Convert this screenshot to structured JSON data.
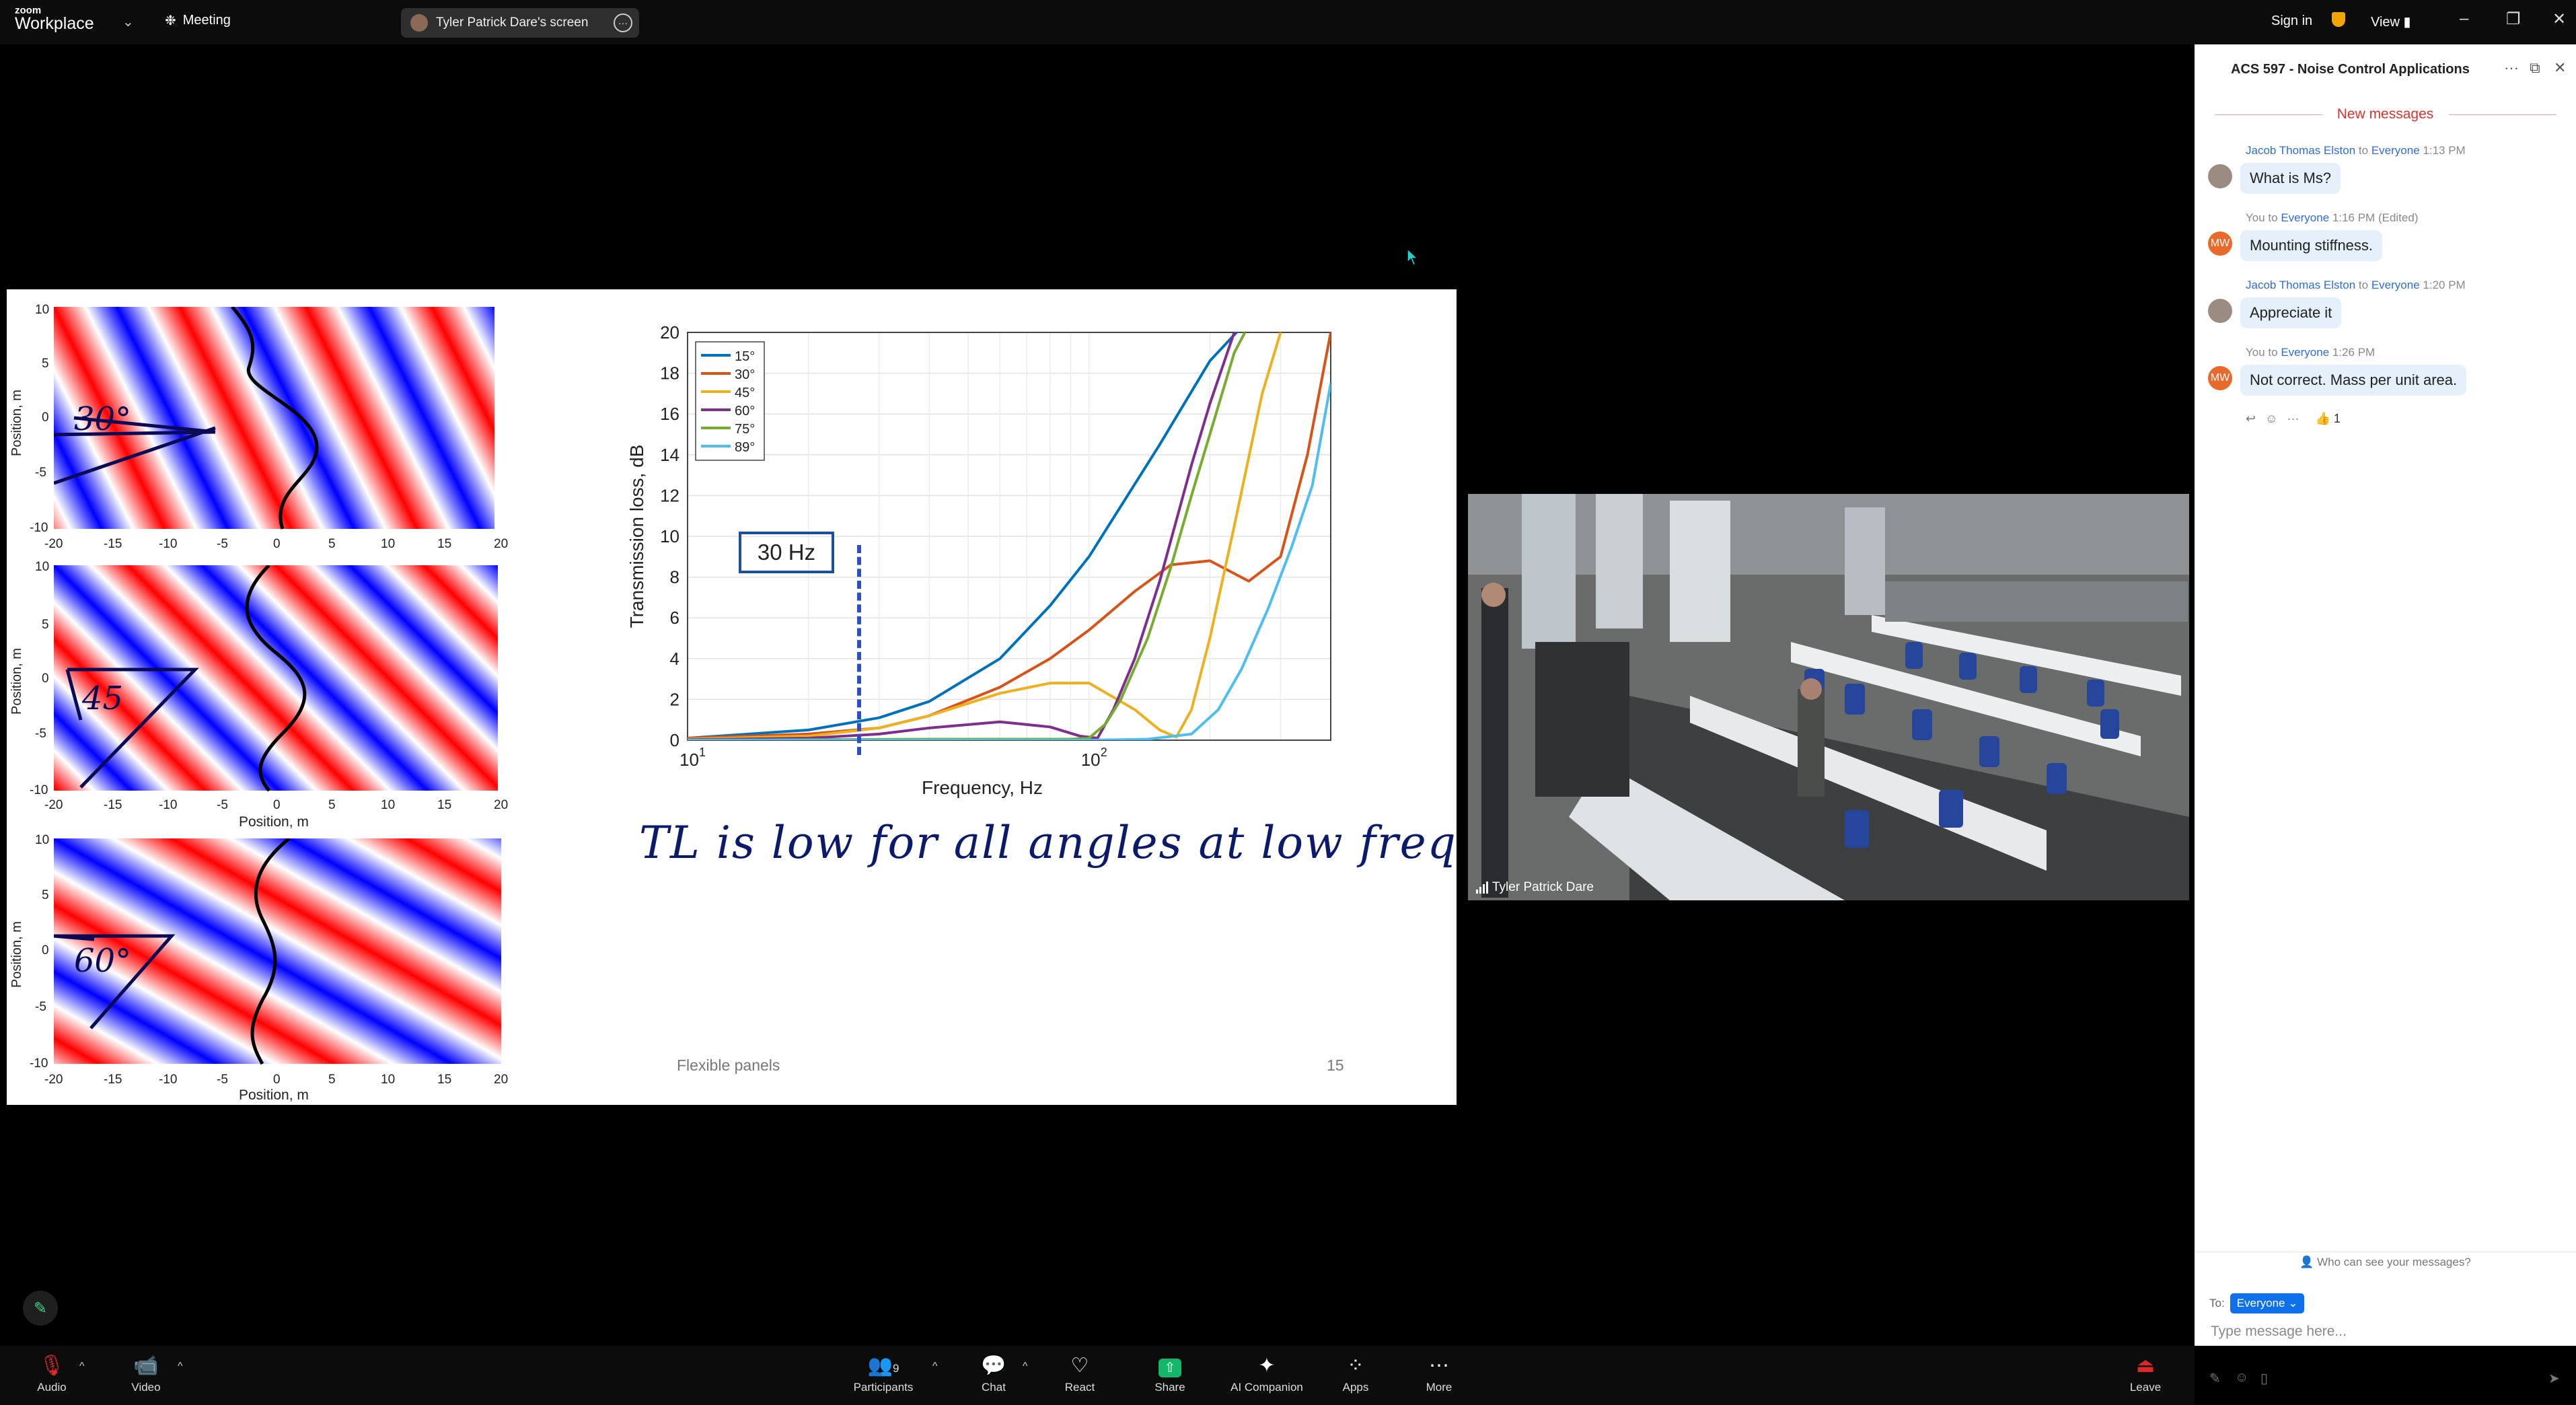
{
  "topbar": {
    "brand_line1": "zoom",
    "brand_line2": "Workplace",
    "meeting_label": "Meeting",
    "shared_screen_label": "Tyler Patrick Dare's screen",
    "signin_label": "Sign in",
    "view_label": "View"
  },
  "slide": {
    "footer_title": "Flexible panels",
    "page_number": "15",
    "annotation_box": "30 Hz",
    "handwriting": "TL is low for all angles at low freq.",
    "wave_plots": [
      {
        "angle_text": "30°",
        "ylabel": "Position, m",
        "xlabel": "",
        "xticks": [
          "-20",
          "-15",
          "-10",
          "-5",
          "0",
          "5",
          "10",
          "15",
          "20"
        ],
        "yticks": [
          "10",
          "5",
          "0",
          "-5",
          "-10"
        ]
      },
      {
        "angle_text": "45",
        "ylabel": "Position, m",
        "xlabel": "Position, m",
        "xticks": [
          "-20",
          "-15",
          "-10",
          "-5",
          "0",
          "5",
          "10",
          "15",
          "20"
        ],
        "yticks": [
          "10",
          "5",
          "0",
          "-5",
          "-10"
        ]
      },
      {
        "angle_text": "60°",
        "ylabel": "Position, m",
        "xlabel": "Position, m",
        "xticks": [
          "-20",
          "-15",
          "-10",
          "-5",
          "0",
          "5",
          "10",
          "15",
          "20"
        ],
        "yticks": [
          "10",
          "5",
          "0",
          "-5",
          "-10"
        ]
      }
    ]
  },
  "chart_data": {
    "type": "line",
    "xlabel": "Frequency, Hz",
    "ylabel": "Transmission loss, dB",
    "xscale": "log",
    "xlim": [
      10,
      400
    ],
    "ylim": [
      0,
      20
    ],
    "yticks": [
      "0",
      "2",
      "4",
      "6",
      "8",
      "10",
      "12",
      "14",
      "16",
      "18",
      "20"
    ],
    "xtick_base": "10",
    "xtick_exps": [
      "1",
      "2"
    ],
    "legend_position": "top-left",
    "series": [
      {
        "name": "15°",
        "color": "#0072bd",
        "x": [
          10,
          20,
          30,
          40,
          60,
          80,
          100,
          150,
          200,
          260
        ],
        "y": [
          0.1,
          0.5,
          1.1,
          1.9,
          4.0,
          6.6,
          9.0,
          14.5,
          18.6,
          21.0
        ]
      },
      {
        "name": "30°",
        "color": "#d95319",
        "x": [
          10,
          20,
          30,
          40,
          60,
          80,
          100,
          130,
          160,
          200,
          250,
          300,
          350,
          400
        ],
        "y": [
          0.1,
          0.3,
          0.6,
          1.2,
          2.6,
          4.0,
          5.4,
          7.3,
          8.6,
          8.8,
          7.8,
          9.0,
          14.0,
          20.0
        ]
      },
      {
        "name": "45°",
        "color": "#edb120",
        "x": [
          10,
          20,
          30,
          40,
          60,
          80,
          100,
          130,
          150,
          165,
          180,
          200,
          230,
          270,
          300
        ],
        "y": [
          0.05,
          0.2,
          0.6,
          1.2,
          2.3,
          2.8,
          2.8,
          1.5,
          0.5,
          0.15,
          1.5,
          5.0,
          10.5,
          17.0,
          20.0
        ]
      },
      {
        "name": "60°",
        "color": "#7e2f8e",
        "x": [
          10,
          20,
          30,
          40,
          60,
          80,
          95,
          105,
          115,
          130,
          150,
          180,
          200,
          230,
          260
        ],
        "y": [
          0.02,
          0.1,
          0.3,
          0.6,
          0.9,
          0.65,
          0.2,
          0.1,
          1.5,
          4.0,
          7.8,
          13.5,
          16.5,
          20.0,
          21.0
        ]
      },
      {
        "name": "75°",
        "color": "#77ac30",
        "x": [
          10,
          40,
          70,
          90,
          100,
          110,
          120,
          140,
          160,
          180,
          200,
          230,
          260
        ],
        "y": [
          0.0,
          0.05,
          0.05,
          0.05,
          0.1,
          0.8,
          2.0,
          5.0,
          8.5,
          12.0,
          15.0,
          19.0,
          21.0
        ]
      },
      {
        "name": "89°",
        "color": "#4dbeee",
        "x": [
          10,
          60,
          100,
          140,
          180,
          210,
          240,
          280,
          320,
          360,
          400
        ],
        "y": [
          0.0,
          0.0,
          0.0,
          0.05,
          0.3,
          1.5,
          3.5,
          6.5,
          9.5,
          12.5,
          17.5
        ]
      }
    ]
  },
  "video": {
    "participant_name": "Tyler Patrick Dare"
  },
  "chat": {
    "title": "ACS 597 - Noise Control Applications",
    "new_messages_label": "New messages",
    "messages": [
      {
        "from": "Jacob Thomas Elston",
        "to_word": "to",
        "to": "Everyone",
        "time": "1:13 PM",
        "text": "What is Ms?",
        "edited": ""
      },
      {
        "from": "You",
        "to_word": "to",
        "to": "Everyone",
        "time": "1:16 PM",
        "text": "Mounting stiffness.",
        "edited": "(Edited)"
      },
      {
        "from": "Jacob Thomas Elston",
        "to_word": "to",
        "to": "Everyone",
        "time": "1:20 PM",
        "text": "Appreciate it",
        "edited": ""
      },
      {
        "from": "You",
        "to_word": "to",
        "to": "Everyone",
        "time": "1:26 PM",
        "text": "Not correct.  Mass per unit area.",
        "edited": ""
      }
    ],
    "avatar_initials": "MW",
    "reaction": "👍 1",
    "who_can_see": "Who can see your messages?",
    "to_label": "To:",
    "to_value": "Everyone",
    "input_placeholder": "Type message here..."
  },
  "toolbar": {
    "audio": "Audio",
    "video": "Video",
    "participants": "Participants",
    "participants_count": "9",
    "chat": "Chat",
    "react": "React",
    "share": "Share",
    "ai_companion": "AI Companion",
    "apps": "Apps",
    "more": "More",
    "leave": "Leave"
  },
  "colors": {
    "zoom_blue": "#0e71eb",
    "share_green": "#12b76a",
    "leave_red": "#e02828",
    "new_messages_red": "#e0302b"
  }
}
